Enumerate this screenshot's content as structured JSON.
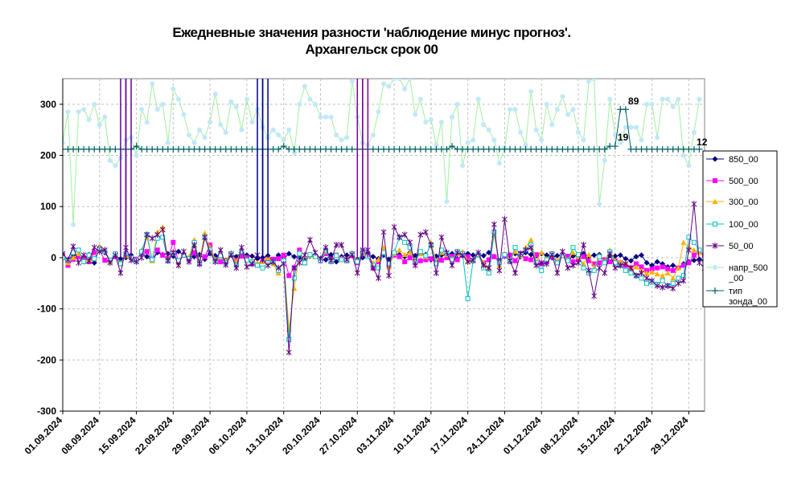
{
  "chart_data": {
    "type": "line",
    "title": "Ежедневные значения разности 'наблюдение минус прогноз'.",
    "subtitle": "Архангельск    срок 00",
    "ylim": [
      -300,
      350
    ],
    "yticks": [
      -300,
      -200,
      -100,
      0,
      100,
      200,
      300
    ],
    "ytick_labels": [
      "-300",
      "-200",
      "-100",
      "0",
      "100",
      "200",
      "300"
    ],
    "xlim": [
      0,
      122
    ],
    "xtick_labels": [
      "01.09.2024",
      "08.09.2024",
      "15.09.2024",
      "22.09.2024",
      "29.09.2024",
      "06.10.2024",
      "13.10.2024",
      "20.10.2024",
      "27.10.2024",
      "03.11.2024",
      "10.11.2024",
      "17.11.2024",
      "24.11.2024",
      "01.12.2024",
      "08.12.2024",
      "15.12.2024",
      "22.12.2024",
      "29.12.2024"
    ],
    "grid": true,
    "legend_position": "right",
    "annotations": [
      {
        "text": "19",
        "x": 106.5,
        "y": 220
      },
      {
        "text": "89",
        "x": 108.5,
        "y": 290
      },
      {
        "text": "12",
        "x": 121.5,
        "y": 210
      }
    ],
    "series": [
      {
        "name": "850_00",
        "color": "#000080",
        "marker": "diamond",
        "values": [
          2,
          -8,
          5,
          3,
          -2,
          6,
          -10,
          20,
          10,
          -5,
          3,
          -2,
          0,
          5,
          -3,
          8,
          2,
          -5,
          10,
          6,
          8,
          3,
          12,
          5,
          -4,
          2,
          6,
          -3,
          8,
          4,
          3,
          -5,
          6,
          2,
          10,
          5,
          3,
          -2,
          0,
          4,
          -6,
          5,
          -3,
          8,
          2,
          0,
          -5,
          3,
          4,
          -2,
          -4,
          6,
          -8,
          2,
          5,
          4,
          -3,
          0,
          8,
          2,
          -2,
          5,
          -3,
          8,
          6,
          2,
          10,
          4,
          8,
          6,
          -4,
          3,
          5,
          6,
          8,
          -2,
          4,
          8,
          5,
          6,
          4,
          10,
          2,
          -6,
          3,
          5,
          8,
          2,
          10,
          6,
          4,
          8,
          5,
          0,
          4,
          6,
          -5,
          3,
          5,
          8,
          2,
          5,
          6,
          -8,
          4,
          3,
          5,
          -2,
          -6,
          2,
          5,
          -10,
          -15,
          -8,
          -12,
          -18,
          -15,
          -20,
          -12,
          -8,
          -5,
          -3,
          -6,
          10,
          5,
          2
        ]
      },
      {
        "name": "500_00",
        "color": "#ff00ff",
        "marker": "square",
        "values": [
          5,
          -15,
          -3,
          2,
          0,
          -8,
          10,
          15,
          -5,
          -8,
          2,
          -12,
          5,
          0,
          -3,
          10,
          12,
          -4,
          15,
          5,
          -2,
          30,
          -8,
          5,
          -4,
          10,
          -12,
          2,
          25,
          -6,
          -8,
          -10,
          8,
          -5,
          3,
          0,
          -12,
          -15,
          -8,
          -4,
          -3,
          -2,
          5,
          -35,
          -20,
          15,
          -10,
          5,
          3,
          -6,
          8,
          -3,
          5,
          -2,
          -6,
          4,
          -10,
          8,
          3,
          -20,
          -8,
          10,
          -15,
          5,
          2,
          -8,
          0,
          -10,
          -6,
          -4,
          -2,
          -8,
          -5,
          0,
          3,
          -4,
          8,
          2,
          -6,
          6,
          -10,
          -4,
          2,
          -8,
          3,
          5,
          -6,
          8,
          -2,
          -4,
          6,
          -12,
          -8,
          2,
          -10,
          5,
          3,
          -8,
          -4,
          2,
          -6,
          -12,
          -10,
          -4,
          -8,
          -6,
          -10,
          -15,
          -20,
          -12,
          -18,
          -25,
          -22,
          -20,
          -18,
          -22,
          -25,
          -20,
          -15,
          -10,
          5,
          10,
          5,
          -10
        ]
      },
      {
        "name": "300_00",
        "color": "#ffb000",
        "marker": "triangle",
        "values": [
          3,
          -10,
          0,
          8,
          -6,
          -4,
          -2,
          20,
          15,
          -8,
          6,
          -10,
          4,
          0,
          -5,
          15,
          40,
          -6,
          50,
          60,
          -4,
          12,
          -10,
          5,
          2,
          35,
          -8,
          48,
          20,
          -3,
          2,
          -6,
          10,
          -8,
          15,
          -4,
          -6,
          -10,
          -8,
          0,
          -12,
          -30,
          -4,
          -140,
          -60,
          10,
          -8,
          4,
          5,
          -3,
          12,
          -5,
          6,
          -2,
          -4,
          10,
          -6,
          8,
          5,
          -10,
          -4,
          20,
          -18,
          8,
          15,
          6,
          10,
          -4,
          8,
          2,
          30,
          -8,
          10,
          6,
          -2,
          8,
          12,
          -6,
          -4,
          5,
          -10,
          -20,
          45,
          -15,
          8,
          -6,
          12,
          4,
          20,
          35,
          -8,
          10,
          -2,
          5,
          -6,
          8,
          -4,
          10,
          2,
          -12,
          6,
          -20,
          4,
          -8,
          15,
          -6,
          -8,
          -10,
          -20,
          -18,
          -25,
          -30,
          -28,
          -32,
          -35,
          -30,
          -40,
          -20,
          30,
          20,
          15,
          10
        ]
      },
      {
        "name": "100_00",
        "color": "#00c0c0",
        "marker": "square-open",
        "values": [
          0,
          -5,
          10,
          15,
          -8,
          5,
          -2,
          15,
          12,
          -5,
          8,
          -12,
          8,
          0,
          -6,
          12,
          45,
          -4,
          38,
          40,
          -6,
          8,
          -6,
          5,
          -2,
          30,
          -10,
          40,
          15,
          -6,
          4,
          -10,
          8,
          -15,
          12,
          -5,
          -8,
          -15,
          -20,
          -10,
          -8,
          -25,
          -6,
          -160,
          -40,
          8,
          -10,
          6,
          2,
          -5,
          15,
          -8,
          4,
          -4,
          -6,
          8,
          -8,
          12,
          2,
          -15,
          -20,
          10,
          -12,
          10,
          40,
          30,
          20,
          -8,
          12,
          4,
          25,
          -12,
          15,
          8,
          -4,
          12,
          8,
          -80,
          -6,
          6,
          -20,
          -30,
          50,
          -10,
          6,
          -8,
          20,
          6,
          15,
          25,
          -10,
          -25,
          -4,
          8,
          -10,
          4,
          -6,
          20,
          6,
          -20,
          -30,
          -25,
          2,
          -10,
          12,
          -10,
          -15,
          -25,
          -30,
          -35,
          -40,
          -50,
          -48,
          -52,
          -45,
          -55,
          -50,
          -40,
          -35,
          40,
          30,
          15
        ]
      },
      {
        "name": "50_00",
        "color": "#600080",
        "marker": "star",
        "values": [
          8,
          -4,
          22,
          -10,
          5,
          -6,
          20,
          12,
          15,
          -10,
          5,
          -30,
          20,
          -5,
          -8,
          0,
          45,
          38,
          45,
          55,
          -6,
          10,
          -15,
          12,
          -8,
          25,
          -12,
          40,
          10,
          -8,
          15,
          -14,
          6,
          -20,
          20,
          -18,
          -12,
          5,
          -4,
          -15,
          -8,
          -20,
          -12,
          -185,
          -20,
          -10,
          5,
          35,
          10,
          -2,
          20,
          -6,
          25,
          25,
          -4,
          6,
          -30,
          15,
          15,
          -20,
          -40,
          50,
          -35,
          60,
          40,
          45,
          30,
          -15,
          45,
          50,
          25,
          -30,
          40,
          10,
          -15,
          10,
          5,
          -8,
          -5,
          10,
          -15,
          -20,
          65,
          -25,
          75,
          -6,
          -30,
          8,
          15,
          20,
          -15,
          -10,
          -12,
          6,
          -30,
          12,
          -20,
          -15,
          -10,
          25,
          -25,
          -75,
          -20,
          -30,
          8,
          -20,
          -15,
          -12,
          -20,
          -35,
          -30,
          -40,
          -45,
          -55,
          -58,
          -55,
          -60,
          -50,
          -45,
          15,
          105,
          -10,
          -20
        ]
      },
      {
        "name": "напр_500_00",
        "color": "#c0e8f8",
        "line_color": "#a0f0a0",
        "marker": "circle",
        "values": [
          225,
          285,
          65,
          285,
          290,
          270,
          300,
          260,
          275,
          190,
          180,
          195,
          230,
          235,
          200,
          290,
          265,
          340,
          290,
          300,
          225,
          330,
          310,
          280,
          240,
          225,
          250,
          235,
          265,
          320,
          260,
          245,
          305,
          295,
          250,
          310,
          265,
          290,
          255,
          235,
          250,
          240,
          230,
          250,
          205,
          300,
          335,
          310,
          300,
          275,
          275,
          275,
          240,
          230,
          235,
          345,
          275,
          225,
          220,
          240,
          285,
          340,
          335,
          350,
          350,
          330,
          350,
          280,
          310,
          265,
          270,
          220,
          265,
          110,
          275,
          300,
          180,
          225,
          230,
          310,
          260,
          250,
          230,
          185,
          215,
          290,
          290,
          245,
          220,
          325,
          250,
          230,
          300,
          260,
          290,
          315,
          280,
          290,
          245,
          230,
          345,
          350,
          105,
          190,
          310,
          240,
          225,
          255,
          255,
          255,
          230,
          300,
          300,
          235,
          310,
          310,
          295,
          310,
          200,
          180,
          245,
          310
        ]
      },
      {
        "name": "тип зонда_00",
        "color": "#006060",
        "marker": "plus",
        "values": [
          212,
          212,
          212,
          212,
          212,
          212,
          212,
          212,
          212,
          212,
          212,
          212,
          212,
          212,
          218,
          212,
          212,
          212,
          212,
          212,
          212,
          212,
          212,
          212,
          212,
          212,
          212,
          212,
          212,
          212,
          212,
          212,
          212,
          212,
          212,
          212,
          212,
          212,
          212,
          212,
          212,
          212,
          218,
          212,
          212,
          212,
          212,
          212,
          212,
          212,
          212,
          212,
          212,
          212,
          212,
          212,
          212,
          212,
          212,
          212,
          212,
          212,
          212,
          212,
          212,
          212,
          212,
          212,
          212,
          212,
          212,
          212,
          212,
          212,
          218,
          212,
          212,
          212,
          212,
          212,
          212,
          212,
          212,
          212,
          212,
          212,
          212,
          212,
          212,
          212,
          212,
          212,
          212,
          212,
          212,
          212,
          212,
          212,
          212,
          212,
          212,
          212,
          212,
          212,
          218,
          218,
          290,
          290,
          212,
          212,
          212,
          212,
          212,
          212,
          212,
          212,
          212,
          212,
          212,
          212,
          212,
          212
        ]
      }
    ],
    "spikes": [
      {
        "series": "50_00",
        "color": "#6000a0",
        "x": [
          11,
          12,
          12,
          13
        ]
      },
      {
        "series": "850_00",
        "color": "#000090",
        "x": [
          37,
          38,
          38,
          39
        ]
      },
      {
        "series": "500_00",
        "color": "#8000a0",
        "x": [
          56,
          57,
          57,
          58
        ]
      }
    ]
  }
}
